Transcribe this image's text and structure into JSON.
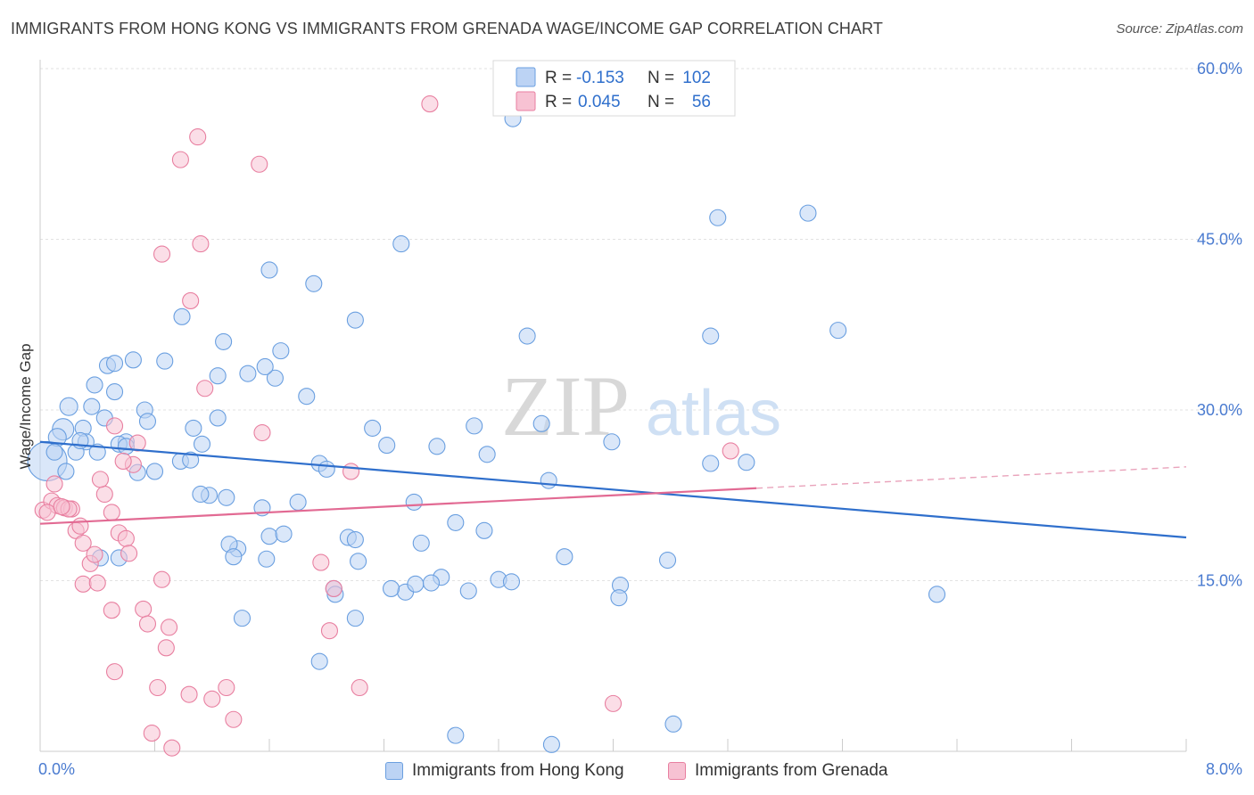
{
  "title": "IMMIGRANTS FROM HONG KONG VS IMMIGRANTS FROM GRENADA WAGE/INCOME GAP CORRELATION CHART",
  "source": "Source: ZipAtlas.com",
  "watermark": {
    "zip": "ZIP",
    "atlas": "atlas"
  },
  "legend": {
    "r_label": "R =",
    "n_label": "N =",
    "rows": [
      {
        "r": "-0.153",
        "n": "102",
        "color": "#6a9fe0",
        "fill": "#bcd3f4"
      },
      {
        "r": "0.045",
        "n": "56",
        "color": "#e87fa0",
        "fill": "#f7c2d3"
      }
    ]
  },
  "chart_data": {
    "type": "scatter",
    "xlabel": "",
    "ylabel": "Wage/Income Gap",
    "xlim": [
      0,
      8
    ],
    "ylim": [
      0,
      60
    ],
    "x_tick_labels": [
      "0.0%",
      "8.0%"
    ],
    "y_ticks": [
      15,
      30,
      45,
      60
    ],
    "y_tick_labels": [
      "15.0%",
      "30.0%",
      "45.0%",
      "60.0%"
    ],
    "grid": true,
    "series": [
      {
        "name": "Immigrants from Hong Kong",
        "color": "#6a9fe0",
        "fill": "#bcd3f4",
        "trend": {
          "x": [
            0,
            8
          ],
          "y": [
            27.2,
            18.8
          ],
          "dashed_from": null
        },
        "points": [
          [
            0.05,
            25.5,
            22
          ],
          [
            0.16,
            28.3,
            12
          ],
          [
            0.2,
            30.3,
            10
          ],
          [
            0.12,
            27.6,
            10
          ],
          [
            0.3,
            28.4,
            9
          ],
          [
            0.32,
            27.2,
            9
          ],
          [
            0.38,
            32.2,
            9
          ],
          [
            0.45,
            29.3,
            9
          ],
          [
            0.52,
            31.6,
            9
          ],
          [
            0.6,
            27.2,
            9
          ],
          [
            0.73,
            30.0,
            9
          ],
          [
            0.75,
            29.0,
            9
          ],
          [
            0.68,
            24.5,
            9
          ],
          [
            0.47,
            33.9,
            9
          ],
          [
            0.52,
            34.1,
            9
          ],
          [
            0.87,
            34.3,
            9
          ],
          [
            0.99,
            38.2,
            9
          ],
          [
            1.28,
            36.0,
            9
          ],
          [
            1.6,
            42.3,
            9
          ],
          [
            1.68,
            35.2,
            9
          ],
          [
            1.91,
            41.1,
            9
          ],
          [
            2.2,
            37.9,
            9
          ],
          [
            2.52,
            44.6,
            9
          ],
          [
            1.64,
            32.8,
            9
          ],
          [
            1.57,
            33.8,
            9
          ],
          [
            1.24,
            33.0,
            9
          ],
          [
            1.45,
            33.2,
            9
          ],
          [
            1.86,
            31.2,
            9
          ],
          [
            1.24,
            29.3,
            9
          ],
          [
            1.13,
            27.0,
            9
          ],
          [
            1.07,
            28.4,
            9
          ],
          [
            0.98,
            25.5,
            9
          ],
          [
            1.05,
            25.6,
            9
          ],
          [
            1.3,
            22.3,
            9
          ],
          [
            1.18,
            22.5,
            9
          ],
          [
            1.12,
            22.6,
            9
          ],
          [
            1.55,
            21.4,
            9
          ],
          [
            1.8,
            21.9,
            9
          ],
          [
            1.38,
            17.8,
            9
          ],
          [
            1.32,
            18.2,
            9
          ],
          [
            1.6,
            18.9,
            9
          ],
          [
            1.7,
            19.1,
            9
          ],
          [
            1.95,
            25.3,
            9
          ],
          [
            2.0,
            24.8,
            9
          ],
          [
            2.32,
            28.4,
            9
          ],
          [
            2.42,
            26.9,
            9
          ],
          [
            2.61,
            21.9,
            9
          ],
          [
            2.77,
            26.8,
            9
          ],
          [
            3.03,
            28.6,
            9
          ],
          [
            3.12,
            26.1,
            9
          ],
          [
            2.66,
            18.3,
            9
          ],
          [
            2.8,
            15.3,
            9
          ],
          [
            2.9,
            20.1,
            9
          ],
          [
            3.1,
            19.4,
            9
          ],
          [
            3.4,
            36.5,
            9
          ],
          [
            3.5,
            28.8,
            9
          ],
          [
            3.55,
            23.8,
            9
          ],
          [
            3.99,
            27.2,
            9
          ],
          [
            3.66,
            17.1,
            9
          ],
          [
            3.2,
            15.1,
            9
          ],
          [
            3.29,
            14.9,
            9
          ],
          [
            2.99,
            14.1,
            9
          ],
          [
            2.55,
            14.0,
            9
          ],
          [
            2.62,
            14.7,
            9
          ],
          [
            2.73,
            14.8,
            9
          ],
          [
            2.15,
            18.8,
            9
          ],
          [
            2.2,
            18.6,
            9
          ],
          [
            2.22,
            16.7,
            9
          ],
          [
            2.45,
            14.3,
            9
          ],
          [
            2.2,
            11.7,
            9
          ],
          [
            2.05,
            14.3,
            9
          ],
          [
            2.06,
            13.8,
            9
          ],
          [
            1.41,
            11.7,
            9
          ],
          [
            1.35,
            17.1,
            9
          ],
          [
            1.58,
            16.9,
            9
          ],
          [
            1.95,
            7.9,
            9
          ],
          [
            2.9,
            1.4,
            9
          ],
          [
            3.57,
            0.6,
            9
          ],
          [
            4.42,
            2.4,
            9
          ],
          [
            4.05,
            14.6,
            9
          ],
          [
            4.04,
            13.5,
            9
          ],
          [
            4.38,
            16.8,
            9
          ],
          [
            4.68,
            25.3,
            9
          ],
          [
            4.93,
            25.4,
            9
          ],
          [
            4.68,
            36.5,
            9
          ],
          [
            4.73,
            46.9,
            9
          ],
          [
            5.36,
            47.3,
            9
          ],
          [
            5.57,
            37.0,
            9
          ],
          [
            6.26,
            13.8,
            9
          ],
          [
            3.3,
            55.6,
            9
          ],
          [
            0.55,
            27.0,
            9
          ],
          [
            0.4,
            26.3,
            9
          ],
          [
            0.25,
            26.3,
            9
          ],
          [
            0.8,
            24.6,
            9
          ],
          [
            0.55,
            17.0,
            9
          ],
          [
            0.42,
            17.0,
            9
          ],
          [
            0.28,
            27.3,
            9
          ],
          [
            0.1,
            26.3,
            9
          ],
          [
            0.18,
            24.6,
            9
          ],
          [
            0.65,
            34.4,
            9
          ],
          [
            0.6,
            26.8,
            9
          ],
          [
            0.36,
            30.3,
            9
          ]
        ]
      },
      {
        "name": "Immigrants from Grenada",
        "color": "#e87fa0",
        "fill": "#f7c2d3",
        "trend": {
          "x": [
            0,
            8
          ],
          "y": [
            20.0,
            25.0
          ],
          "dashed_from": 5.0
        },
        "points": [
          [
            0.02,
            21.2,
            9
          ],
          [
            0.08,
            22.0,
            9
          ],
          [
            0.12,
            21.6,
            9
          ],
          [
            0.17,
            21.4,
            9
          ],
          [
            0.22,
            21.3,
            9
          ],
          [
            0.25,
            19.4,
            9
          ],
          [
            0.3,
            18.3,
            9
          ],
          [
            0.35,
            16.5,
            9
          ],
          [
            0.38,
            17.3,
            9
          ],
          [
            0.45,
            22.6,
            9
          ],
          [
            0.5,
            21.0,
            9
          ],
          [
            0.55,
            19.2,
            9
          ],
          [
            0.6,
            18.7,
            9
          ],
          [
            0.62,
            17.4,
            9
          ],
          [
            0.65,
            25.2,
            9
          ],
          [
            0.68,
            27.1,
            9
          ],
          [
            0.58,
            25.5,
            9
          ],
          [
            0.52,
            28.6,
            9
          ],
          [
            0.42,
            23.9,
            9
          ],
          [
            0.3,
            14.7,
            9
          ],
          [
            0.4,
            14.8,
            9
          ],
          [
            0.5,
            12.4,
            9
          ],
          [
            0.72,
            12.5,
            9
          ],
          [
            0.75,
            11.2,
            9
          ],
          [
            0.85,
            15.1,
            9
          ],
          [
            0.9,
            10.9,
            9
          ],
          [
            0.88,
            9.1,
            9
          ],
          [
            0.52,
            7.0,
            9
          ],
          [
            0.82,
            5.6,
            9
          ],
          [
            1.04,
            5.0,
            9
          ],
          [
            1.2,
            4.6,
            9
          ],
          [
            1.3,
            5.6,
            9
          ],
          [
            1.35,
            2.8,
            9
          ],
          [
            0.78,
            1.6,
            9
          ],
          [
            0.92,
            0.3,
            9
          ],
          [
            0.85,
            43.7,
            9
          ],
          [
            0.98,
            52.0,
            9
          ],
          [
            1.1,
            54.0,
            9
          ],
          [
            1.12,
            44.6,
            9
          ],
          [
            1.05,
            39.6,
            9
          ],
          [
            1.15,
            31.9,
            9
          ],
          [
            1.53,
            51.6,
            9
          ],
          [
            1.55,
            28.0,
            9
          ],
          [
            2.17,
            24.6,
            9
          ],
          [
            1.96,
            16.6,
            9
          ],
          [
            2.05,
            14.3,
            9
          ],
          [
            2.02,
            10.6,
            9
          ],
          [
            2.23,
            5.6,
            9
          ],
          [
            2.72,
            56.9,
            9
          ],
          [
            4.0,
            4.2,
            9
          ],
          [
            4.82,
            26.4,
            9
          ],
          [
            0.05,
            21.0,
            9
          ],
          [
            0.2,
            21.3,
            9
          ],
          [
            0.15,
            21.5,
            9
          ],
          [
            0.1,
            23.5,
            9
          ],
          [
            0.28,
            19.8,
            9
          ]
        ]
      }
    ]
  }
}
